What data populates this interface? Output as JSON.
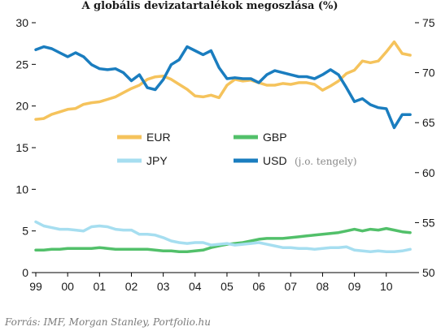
{
  "chart_data": {
    "type": "line",
    "title": "A globális devizatartalékok megoszlása (%)",
    "source": "Forrás: IMF, Morgan Stanley, Portfolio.hu",
    "x_ticks": [
      "99",
      "00",
      "01",
      "02",
      "03",
      "04",
      "05",
      "06",
      "07",
      "08",
      "09",
      "10"
    ],
    "x_range": [
      1999.0,
      2010.9
    ],
    "y_left": {
      "range": [
        0,
        30
      ],
      "ticks": [
        "0",
        "5",
        "10",
        "15",
        "20",
        "25",
        "30"
      ]
    },
    "y_right": {
      "range": [
        50,
        75
      ],
      "ticks": [
        "50",
        "55",
        "60",
        "65",
        "70",
        "75"
      ]
    },
    "grid": false,
    "legend_position": "center",
    "series": [
      {
        "name": "EUR",
        "axis": "left",
        "color": "#f5c35c",
        "x": [
          1999.0,
          1999.25,
          1999.5,
          1999.75,
          2000.0,
          2000.25,
          2000.5,
          2000.75,
          2001.0,
          2001.25,
          2001.5,
          2001.75,
          2002.0,
          2002.25,
          2002.5,
          2002.75,
          2003.0,
          2003.25,
          2003.5,
          2003.75,
          2004.0,
          2004.25,
          2004.5,
          2004.75,
          2005.0,
          2005.25,
          2005.5,
          2005.75,
          2006.0,
          2006.25,
          2006.5,
          2006.75,
          2007.0,
          2007.25,
          2007.5,
          2007.75,
          2008.0,
          2008.25,
          2008.5,
          2008.75,
          2009.0,
          2009.25,
          2009.5,
          2009.75,
          2010.0,
          2010.25,
          2010.5,
          2010.75
        ],
        "values": [
          18.4,
          18.5,
          19.0,
          19.3,
          19.6,
          19.7,
          20.2,
          20.4,
          20.5,
          20.8,
          21.1,
          21.6,
          22.1,
          22.5,
          23.2,
          23.5,
          23.6,
          23.2,
          22.6,
          22.0,
          21.2,
          21.1,
          21.3,
          21.0,
          22.5,
          23.2,
          23.0,
          23.1,
          22.8,
          22.5,
          22.5,
          22.7,
          22.6,
          22.8,
          22.8,
          22.6,
          21.9,
          22.4,
          23.0,
          23.9,
          24.3,
          25.4,
          25.2,
          25.4,
          26.5,
          27.7,
          26.3,
          26.1
        ]
      },
      {
        "name": "GBP",
        "axis": "left",
        "color": "#52c06a",
        "x": [
          1999.0,
          1999.25,
          1999.5,
          1999.75,
          2000.0,
          2000.25,
          2000.5,
          2000.75,
          2001.0,
          2001.25,
          2001.5,
          2001.75,
          2002.0,
          2002.25,
          2002.5,
          2002.75,
          2003.0,
          2003.25,
          2003.5,
          2003.75,
          2004.0,
          2004.25,
          2004.5,
          2004.75,
          2005.0,
          2005.25,
          2005.5,
          2005.75,
          2006.0,
          2006.25,
          2006.5,
          2006.75,
          2007.0,
          2007.25,
          2007.5,
          2007.75,
          2008.0,
          2008.25,
          2008.5,
          2008.75,
          2009.0,
          2009.25,
          2009.5,
          2009.75,
          2010.0,
          2010.25,
          2010.5,
          2010.75
        ],
        "values": [
          2.7,
          2.7,
          2.8,
          2.8,
          2.9,
          2.9,
          2.9,
          2.9,
          3.0,
          2.9,
          2.8,
          2.8,
          2.8,
          2.8,
          2.8,
          2.7,
          2.6,
          2.6,
          2.5,
          2.5,
          2.6,
          2.7,
          3.0,
          3.2,
          3.4,
          3.5,
          3.6,
          3.8,
          4.0,
          4.1,
          4.1,
          4.1,
          4.2,
          4.3,
          4.4,
          4.5,
          4.6,
          4.7,
          4.8,
          5.0,
          5.2,
          5.0,
          5.2,
          5.1,
          5.3,
          5.1,
          4.9,
          4.8
        ]
      },
      {
        "name": "JPY",
        "axis": "left",
        "color": "#a6def0",
        "x": [
          1999.0,
          1999.25,
          1999.5,
          1999.75,
          2000.0,
          2000.25,
          2000.5,
          2000.75,
          2001.0,
          2001.25,
          2001.5,
          2001.75,
          2002.0,
          2002.25,
          2002.5,
          2002.75,
          2003.0,
          2003.25,
          2003.5,
          2003.75,
          2004.0,
          2004.25,
          2004.5,
          2004.75,
          2005.0,
          2005.25,
          2005.5,
          2005.75,
          2006.0,
          2006.25,
          2006.5,
          2006.75,
          2007.0,
          2007.25,
          2007.5,
          2007.75,
          2008.0,
          2008.25,
          2008.5,
          2008.75,
          2009.0,
          2009.25,
          2009.5,
          2009.75,
          2010.0,
          2010.25,
          2010.5,
          2010.75
        ],
        "values": [
          6.1,
          5.6,
          5.4,
          5.2,
          5.2,
          5.1,
          5.0,
          5.5,
          5.6,
          5.5,
          5.2,
          5.1,
          5.1,
          4.6,
          4.6,
          4.5,
          4.2,
          3.8,
          3.6,
          3.5,
          3.6,
          3.6,
          3.3,
          3.4,
          3.5,
          3.3,
          3.4,
          3.5,
          3.6,
          3.4,
          3.2,
          3.0,
          3.0,
          2.9,
          2.9,
          2.8,
          2.9,
          3.0,
          3.0,
          3.1,
          2.7,
          2.6,
          2.5,
          2.6,
          2.5,
          2.5,
          2.6,
          2.8
        ]
      },
      {
        "name": "USD",
        "axis": "right",
        "note": "(j.o. tengely)",
        "color": "#1a7dbf",
        "x": [
          1999.0,
          1999.25,
          1999.5,
          1999.75,
          2000.0,
          2000.25,
          2000.5,
          2000.75,
          2001.0,
          2001.25,
          2001.5,
          2001.75,
          2002.0,
          2002.25,
          2002.5,
          2002.75,
          2003.0,
          2003.25,
          2003.5,
          2003.75,
          2004.0,
          2004.25,
          2004.5,
          2004.75,
          2005.0,
          2005.25,
          2005.5,
          2005.75,
          2006.0,
          2006.25,
          2006.5,
          2006.75,
          2007.0,
          2007.25,
          2007.5,
          2007.75,
          2008.0,
          2008.25,
          2008.5,
          2008.75,
          2009.0,
          2009.25,
          2009.5,
          2009.75,
          2010.0,
          2010.25,
          2010.5,
          2010.75
        ],
        "values": [
          72.3,
          72.6,
          72.4,
          72.0,
          71.6,
          72.0,
          71.6,
          70.8,
          70.4,
          70.3,
          70.4,
          70.0,
          69.2,
          69.8,
          68.5,
          68.3,
          69.3,
          70.8,
          71.3,
          72.6,
          72.2,
          71.8,
          72.2,
          70.5,
          69.4,
          69.5,
          69.4,
          69.4,
          69.0,
          69.8,
          70.2,
          70.0,
          69.8,
          69.6,
          69.6,
          69.4,
          69.8,
          70.3,
          69.8,
          68.5,
          67.1,
          67.4,
          66.8,
          66.5,
          66.4,
          64.5,
          65.8,
          65.8
        ]
      }
    ]
  }
}
